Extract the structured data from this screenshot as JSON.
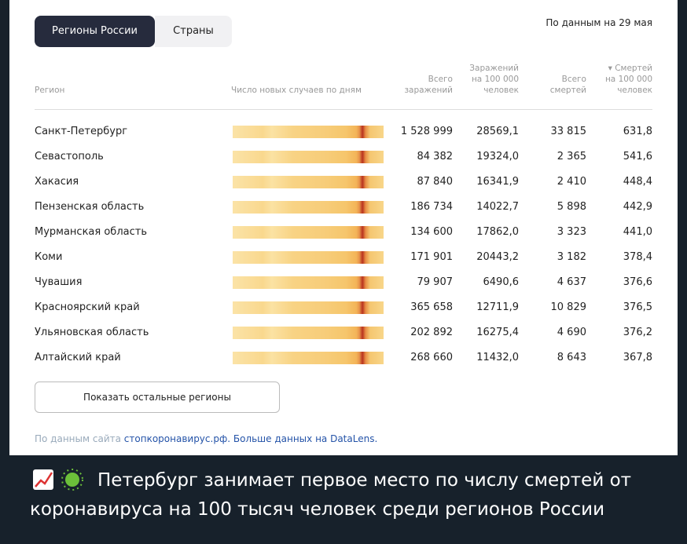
{
  "tabs": [
    "Регионы России",
    "Страны"
  ],
  "date_note": "По данным на 29 мая",
  "table": {
    "headers": [
      "Регион",
      "Число новых случаев по дням",
      "Всего заражений",
      "Заражений на 100 000 человек",
      "Всего смертей",
      "▾ Смертей на 100 000 человек"
    ],
    "rows": [
      [
        "Санкт-Петербург",
        "1 528 999",
        "28569,1",
        "33 815",
        "631,8"
      ],
      [
        "Севастополь",
        "84 382",
        "19324,0",
        "2 365",
        "541,6"
      ],
      [
        "Хакасия",
        "87 840",
        "16341,9",
        "2 410",
        "448,4"
      ],
      [
        "Пензенская область",
        "186 734",
        "14022,7",
        "5 898",
        "442,9"
      ],
      [
        "Мурманская область",
        "134 600",
        "17862,0",
        "3 323",
        "441,0"
      ],
      [
        "Коми",
        "171 901",
        "20443,2",
        "3 182",
        "378,4"
      ],
      [
        "Чувашия",
        "79 907",
        "6490,6",
        "4 637",
        "376,6"
      ],
      [
        "Красноярский край",
        "365 658",
        "12711,9",
        "10 829",
        "376,5"
      ],
      [
        "Ульяновская область",
        "202 892",
        "16275,4",
        "4 690",
        "376,2"
      ],
      [
        "Алтайский край",
        "268 660",
        "11432,0",
        "8 643",
        "367,8"
      ]
    ]
  },
  "button": "Показать остальные регионы",
  "footer": {
    "prefix": "По данным сайта",
    "source_link": "стопкоронавирус.рф.",
    "datalens_link": "Больше данных на DataLens."
  },
  "caption": "Петербург занимает первое место по числу смертей от коронавируса на 100 тысяч человек среди регионов России"
}
